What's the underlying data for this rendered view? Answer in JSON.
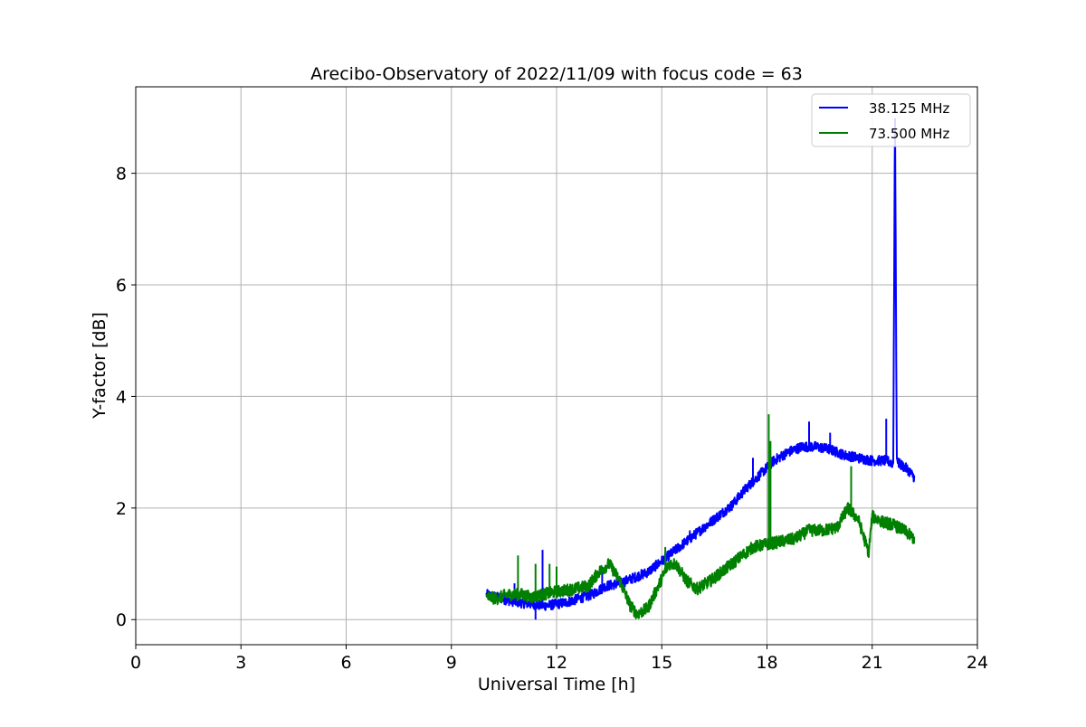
{
  "chart_data": {
    "type": "line",
    "title": "Arecibo-Observatory of 2022/11/09 with focus code = 63",
    "xlabel": "Universal Time [h]",
    "ylabel": "Y-factor [dB]",
    "xlim": [
      0,
      24
    ],
    "ylim": [
      -0.45,
      9.55
    ],
    "xticks": [
      0,
      3,
      6,
      9,
      12,
      15,
      18,
      21,
      24
    ],
    "yticks": [
      0,
      2,
      4,
      6,
      8
    ],
    "grid": true,
    "legend_position": "top-right",
    "series": [
      {
        "name": "38.125 MHz",
        "color": "#0000ff",
        "x": [
          10.0,
          10.3,
          10.6,
          11.0,
          11.3,
          11.6,
          11.8,
          12.2,
          12.5,
          13.0,
          13.4,
          13.8,
          14.2,
          14.6,
          15.0,
          15.4,
          15.8,
          16.2,
          16.6,
          17.0,
          17.4,
          17.8,
          18.2,
          18.6,
          19.0,
          19.4,
          19.8,
          20.2,
          20.6,
          21.0,
          21.4,
          21.6,
          21.65,
          21.7,
          21.75,
          22.0,
          22.2
        ],
        "y": [
          0.45,
          0.4,
          0.35,
          0.3,
          0.28,
          0.25,
          0.26,
          0.3,
          0.35,
          0.45,
          0.6,
          0.65,
          0.75,
          0.85,
          1.05,
          1.25,
          1.45,
          1.65,
          1.85,
          2.05,
          2.35,
          2.6,
          2.85,
          3.0,
          3.1,
          3.1,
          3.05,
          2.95,
          2.9,
          2.85,
          2.85,
          2.8,
          9.1,
          2.9,
          2.8,
          2.7,
          2.55
        ],
        "spikes": [
          {
            "x": 10.8,
            "y": 0.65
          },
          {
            "x": 11.4,
            "y": 0.0
          },
          {
            "x": 11.6,
            "y": 1.25
          },
          {
            "x": 13.3,
            "y": 0.95
          },
          {
            "x": 15.8,
            "y": 1.6
          },
          {
            "x": 17.6,
            "y": 2.9
          },
          {
            "x": 19.2,
            "y": 3.55
          },
          {
            "x": 19.8,
            "y": 3.35
          },
          {
            "x": 21.4,
            "y": 3.6
          }
        ]
      },
      {
        "name": "73.500 MHz",
        "color": "#008000",
        "x": [
          10.0,
          10.3,
          10.6,
          11.0,
          11.3,
          11.6,
          12.0,
          12.5,
          12.9,
          13.2,
          13.5,
          13.8,
          14.1,
          14.3,
          14.6,
          14.9,
          15.2,
          15.4,
          15.7,
          16.0,
          16.4,
          16.8,
          17.2,
          17.6,
          18.0,
          18.4,
          18.8,
          19.2,
          19.6,
          20.0,
          20.3,
          20.6,
          20.9,
          21.0,
          21.3,
          21.6,
          21.9,
          22.2
        ],
        "y": [
          0.4,
          0.38,
          0.45,
          0.45,
          0.4,
          0.45,
          0.5,
          0.55,
          0.6,
          0.85,
          1.0,
          0.7,
          0.25,
          0.1,
          0.2,
          0.6,
          1.0,
          1.0,
          0.7,
          0.55,
          0.7,
          0.9,
          1.1,
          1.3,
          1.35,
          1.4,
          1.45,
          1.6,
          1.6,
          1.65,
          2.0,
          1.8,
          1.2,
          1.85,
          1.75,
          1.7,
          1.6,
          1.45
        ],
        "spikes": [
          {
            "x": 10.9,
            "y": 1.15
          },
          {
            "x": 11.4,
            "y": 1.0
          },
          {
            "x": 11.8,
            "y": 1.0
          },
          {
            "x": 12.0,
            "y": 0.95
          },
          {
            "x": 15.1,
            "y": 1.3
          },
          {
            "x": 18.05,
            "y": 3.68
          },
          {
            "x": 18.1,
            "y": 3.2
          },
          {
            "x": 20.4,
            "y": 2.75
          }
        ]
      }
    ]
  }
}
